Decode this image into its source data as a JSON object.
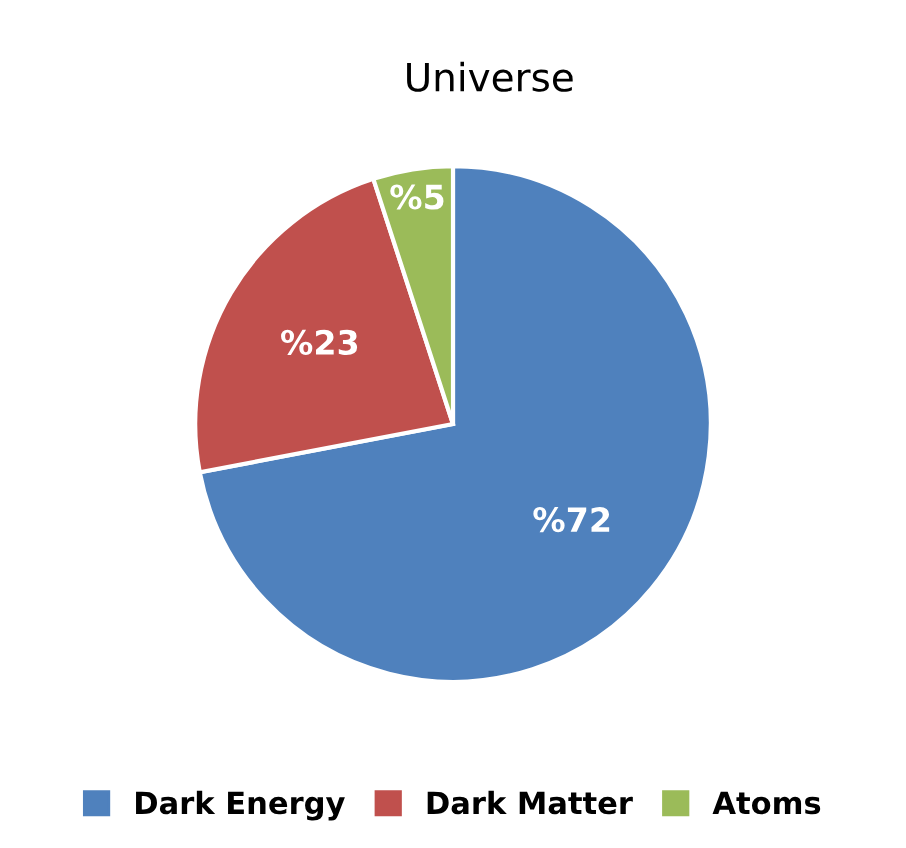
{
  "chart_data": {
    "type": "pie",
    "title": "Universe",
    "categories": [
      "Dark Energy",
      "Dark Matter",
      "Atoms"
    ],
    "values": [
      72,
      23,
      5
    ],
    "colors": [
      "#4f81bd",
      "#c0504d",
      "#9bbb59"
    ],
    "value_labels": [
      "%72",
      "%23",
      "%5"
    ],
    "legend": "bottom"
  }
}
